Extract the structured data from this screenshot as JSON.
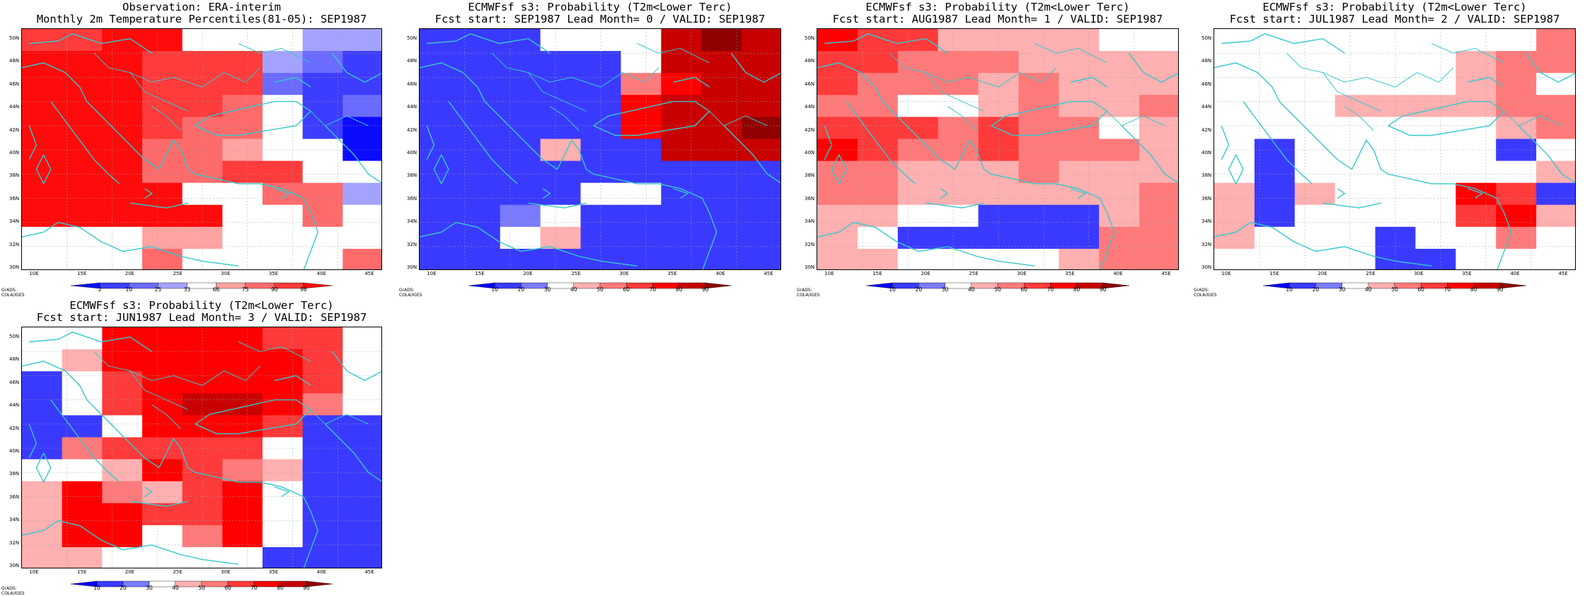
{
  "credit_text": "GrADS: COLA/IGES",
  "lat_labels": [
    "50N",
    "48N",
    "46N",
    "44N",
    "42N",
    "40N",
    "38N",
    "36N",
    "34N",
    "32N",
    "30N"
  ],
  "lon_labels": [
    "10E",
    "15E",
    "20E",
    "25E",
    "30E",
    "35E",
    "40E",
    "45E"
  ],
  "coast_color": "#36c8cc",
  "panels": [
    {
      "title1": "Observation: ERA-interim",
      "title2": "Monthly 2m Temperature Percentiles(81-05): SEP1987",
      "palette": [
        "#0b0bff",
        "#3d3dff",
        "#6b6bff",
        "#a3a3ff",
        "#ffffff",
        "#ffa3a3",
        "#ff6b6b",
        "#ff3b3b",
        "#ff0b0b"
      ],
      "cbar_labels": [
        "2",
        "10",
        "25",
        "33",
        "66",
        "75",
        "90",
        "98"
      ],
      "grid": [
        "778844433",
        "888777321",
        "888777211",
        "888776412",
        "888766410",
        "888665440",
        "888667744",
        "888844663",
        "888884464",
        "444554444",
        "444644446"
      ]
    },
    {
      "title1": "ECMWFsf s3: Probability (T2m<Lower Terc)",
      "title2": "Fcst start: SEP1987  Lead Month= 0 / VALID: SEP1987",
      "palette": [
        "#0000ff",
        "#3a3aff",
        "#7a7aff",
        "#ffffff",
        "#ffb0b0",
        "#ff7a7a",
        "#ff3a3a",
        "#ff0000",
        "#c80000",
        "#900000"
      ],
      "cbar_labels": [
        "10",
        "20",
        "30",
        "40",
        "50",
        "60",
        "70",
        "80",
        "90"
      ],
      "grid": [
        "111333898",
        "111113888",
        "111115788",
        "111117888",
        "111117889",
        "111411888",
        "111111111",
        "111133111",
        "112311111",
        "113411111",
        "111111111"
      ]
    },
    {
      "title1": "ECMWFsf s3: Probability (T2m<Lower Terc)",
      "title2": "Fcst start: AUG1987  Lead Month= 1 / VALID: SEP1987",
      "palette": [
        "#0000ff",
        "#3a3aff",
        "#7a7aff",
        "#ffffff",
        "#ffb0b0",
        "#ff7a7a",
        "#ff3a3a",
        "#ff0000",
        "#c80000",
        "#900000"
      ],
      "cbar_labels": [
        "10",
        "20",
        "30",
        "40",
        "50",
        "60",
        "70",
        "80",
        "90"
      ],
      "grid": [
        "766444433",
        "665554444",
        "655545444",
        "553345445",
        "666565534",
        "765565554",
        "554445444",
        "554444445",
        "443311145",
        "431111155",
        "443333455"
      ]
    },
    {
      "title1": "ECMWFsf s3: Probability (T2m<Lower Terc)",
      "title2": "Fcst start: JUL1987  Lead Month= 2 / VALID: SEP1987",
      "palette": [
        "#0000ff",
        "#3a3aff",
        "#7a7aff",
        "#ffffff",
        "#ffb0b0",
        "#ff7a7a",
        "#ff3a3a",
        "#ff0000",
        "#c80000",
        "#900000"
      ],
      "cbar_labels": [
        "10",
        "20",
        "30",
        "40",
        "50",
        "60",
        "70",
        "80",
        "90"
      ],
      "grid": [
        "333333335",
        "333333455",
        "333333453",
        "333444455",
        "333333345",
        "313333313",
        "313333334",
        "414333761",
        "413333674",
        "433313353",
        "333311333"
      ]
    },
    {
      "title1": "ECMWFsf s3: Probability (T2m<Lower Terc)",
      "title2": "Fcst start: JUN1987  Lead Month= 3 / VALID: SEP1987",
      "palette": [
        "#0000ff",
        "#3a3aff",
        "#7a7aff",
        "#ffffff",
        "#ffb0b0",
        "#ff7a7a",
        "#ff3a3a",
        "#ff0000",
        "#c80000",
        "#900000"
      ],
      "cbar_labels": [
        "10",
        "20",
        "30",
        "40",
        "50",
        "60",
        "70",
        "80",
        "90"
      ],
      "grid": [
        "337777663",
        "347777763",
        "136777763",
        "136788753",
        "113777611",
        "156666311",
        "334765411",
        "475467311",
        "477667311",
        "477357311",
        "443333111"
      ]
    }
  ]
}
